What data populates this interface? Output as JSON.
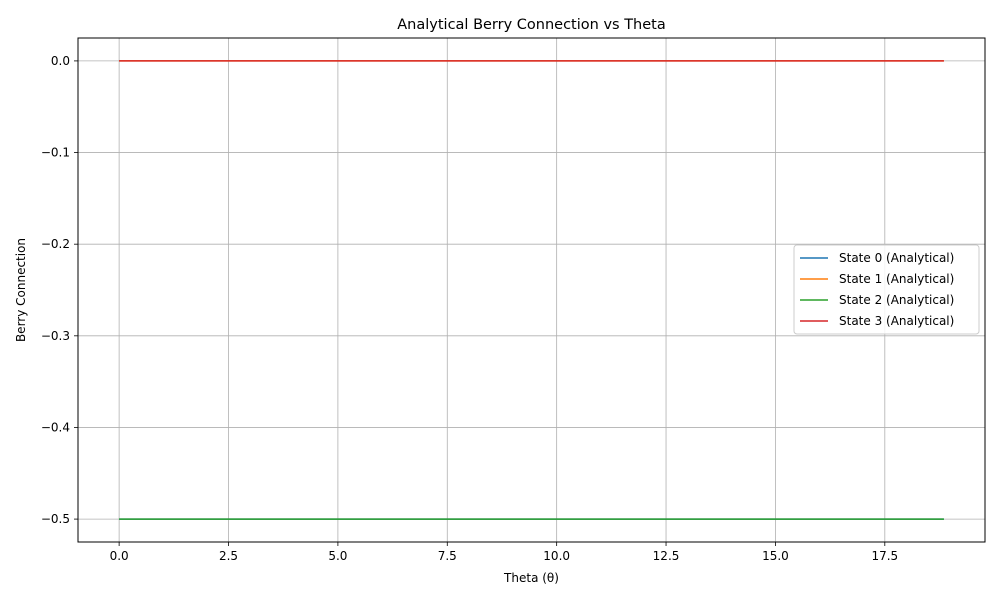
{
  "chart_data": {
    "type": "line",
    "title": "Analytical Berry Connection vs Theta",
    "xlabel": "Theta (θ)",
    "ylabel": "Berry Connection",
    "xlim": [
      -0.94,
      19.79
    ],
    "ylim": [
      -0.525,
      0.025
    ],
    "xticks": [
      0.0,
      2.5,
      5.0,
      7.5,
      10.0,
      12.5,
      15.0,
      17.5
    ],
    "xtick_labels": [
      "0.0",
      "2.5",
      "5.0",
      "7.5",
      "10.0",
      "12.5",
      "15.0",
      "17.5"
    ],
    "yticks": [
      0.0,
      -0.1,
      -0.2,
      -0.3,
      -0.4,
      -0.5
    ],
    "ytick_labels": [
      "0.0",
      "−0.1",
      "−0.2",
      "−0.3",
      "−0.4",
      "−0.5"
    ],
    "grid": true,
    "legend_position": "center-right",
    "series": [
      {
        "name": "State 0 (Analytical)",
        "color": "#1f77b4",
        "x": [
          0,
          18.85
        ],
        "y": [
          -0.5,
          -0.5
        ]
      },
      {
        "name": "State 1 (Analytical)",
        "color": "#ff7f0e",
        "x": [
          0,
          18.85
        ],
        "y": [
          0.0,
          0.0
        ]
      },
      {
        "name": "State 2 (Analytical)",
        "color": "#2ca02c",
        "x": [
          0,
          18.85
        ],
        "y": [
          -0.5,
          -0.5
        ]
      },
      {
        "name": "State 3 (Analytical)",
        "color": "#d62728",
        "x": [
          0,
          18.85
        ],
        "y": [
          0.0,
          0.0
        ]
      }
    ]
  }
}
